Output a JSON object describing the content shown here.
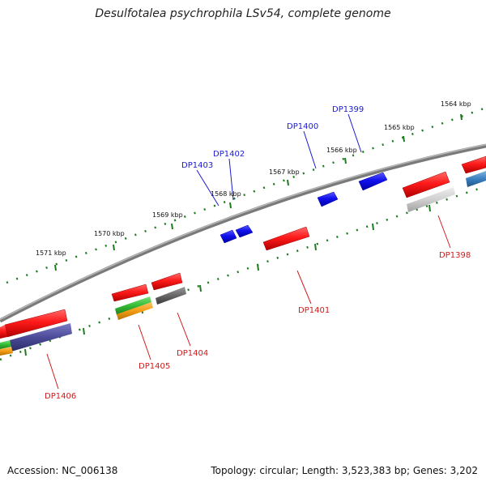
{
  "title": "Desulfotalea psychrophila LSv54, complete genome",
  "footer": {
    "accession": "Accession: NC_006138",
    "summary": "Topology: circular; Length: 3,523,383 bp; Genes: 3,202"
  },
  "colors": {
    "backbone": "#8a8a8a",
    "tick": "#1e7a1e",
    "forward_label": "#1a1ad6",
    "reverse_label": "#d11a1a",
    "forward_gene": "#1a1aee",
    "reverse_gene": "#ee1a1a",
    "cog_gray": "#6e6e6e",
    "cog_lightgray": "#c8c8c8",
    "cog_purple": "#4b4b99",
    "cog_green": "#33bb33",
    "cog_orange": "#f39c12",
    "cog_blue": "#3a7fc0"
  },
  "scale": {
    "unit": "kbp",
    "labels": [
      {
        "kbp": 1564,
        "text": "1564 kbp"
      },
      {
        "kbp": 1565,
        "text": "1565 kbp"
      },
      {
        "kbp": 1566,
        "text": "1566 kbp"
      },
      {
        "kbp": 1567,
        "text": "1567 kbp"
      },
      {
        "kbp": 1568,
        "text": "1568 kbp"
      },
      {
        "kbp": 1569,
        "text": "1569 kbp"
      },
      {
        "kbp": 1570,
        "text": "1570 kbp"
      },
      {
        "kbp": 1571,
        "text": "1571 kbp"
      }
    ]
  },
  "genes": {
    "forward": [
      {
        "name": "DP1399"
      },
      {
        "name": "DP1400"
      },
      {
        "name": "DP1402"
      },
      {
        "name": "DP1403"
      }
    ],
    "reverse": [
      {
        "name": "DP1398",
        "cog": "lightgray"
      },
      {
        "name": "DP1401",
        "cog": "none"
      },
      {
        "name": "DP1404",
        "cog": "gray"
      },
      {
        "name": "DP1405",
        "cog": "green+orange"
      },
      {
        "name": "DP1406",
        "cog": "purple+green+orange"
      }
    ]
  }
}
